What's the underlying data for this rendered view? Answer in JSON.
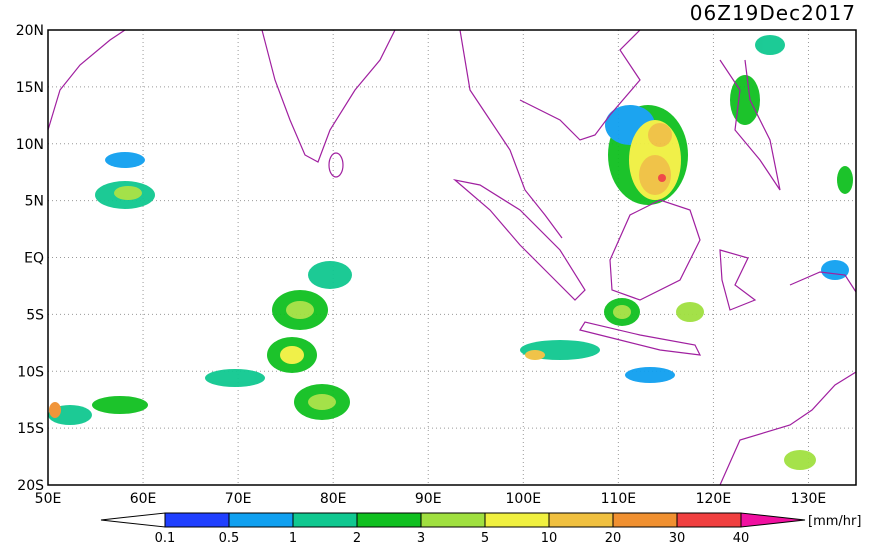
{
  "map": {
    "title": "06Z19Dec2017",
    "lat_labels": [
      "20N",
      "15N",
      "10N",
      "5N",
      "EQ",
      "5S",
      "10S",
      "15S",
      "20S"
    ],
    "lon_labels": [
      "50E",
      "60E",
      "70E",
      "80E",
      "90E",
      "100E",
      "110E",
      "120E",
      "130E"
    ],
    "colorbar": {
      "levels": [
        0.1,
        0.5,
        1,
        2,
        3,
        5,
        10,
        20,
        30,
        40
      ],
      "colors": [
        "#ffffff",
        "#2040ff",
        "#10a0f0",
        "#10c890",
        "#10c020",
        "#a0e040",
        "#f0f040",
        "#f0c040",
        "#f09030",
        "#f04040",
        "#f010a0"
      ],
      "unit": "[mm/hr]"
    }
  }
}
